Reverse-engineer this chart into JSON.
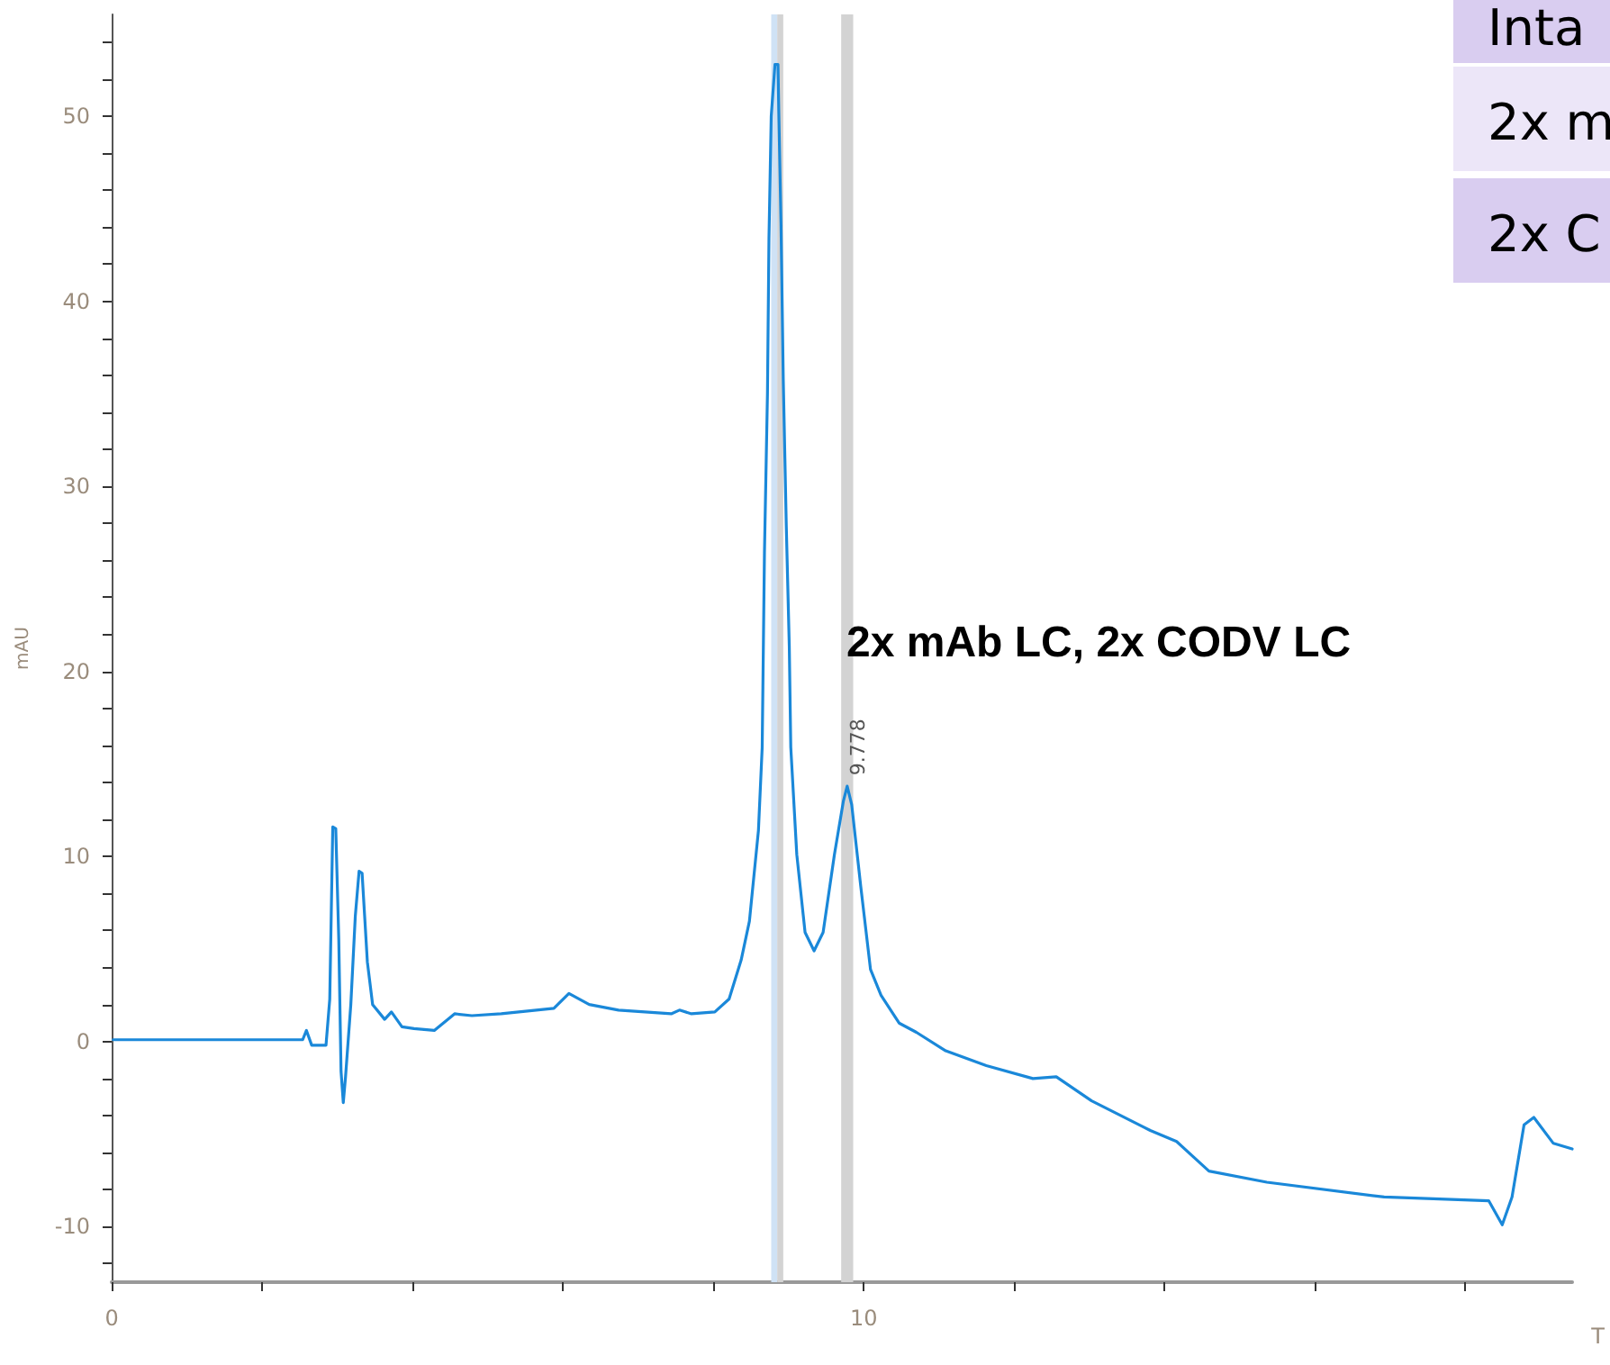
{
  "chart_data": {
    "type": "line",
    "xlabel": "T",
    "ylabel": "mAU",
    "xlim": [
      0,
      19.42
    ],
    "ylim": [
      -13,
      55.5
    ],
    "xticks": [
      0,
      {
        "value": 2,
        "label": null
      },
      {
        "value": 4,
        "label": null
      },
      {
        "value": 6,
        "label": null
      },
      {
        "value": 8,
        "label": null
      },
      10,
      {
        "value": 12,
        "label": null
      },
      {
        "value": 14,
        "label": null
      },
      {
        "value": 16,
        "label": null
      },
      {
        "value": 18,
        "label": null
      }
    ],
    "yticks": [
      {
        "value": -12,
        "label": null
      },
      -10,
      {
        "value": -8,
        "label": null
      },
      {
        "value": -6,
        "label": null
      },
      {
        "value": -4,
        "label": null
      },
      {
        "value": -2,
        "label": null
      },
      0,
      {
        "value": 2,
        "label": null
      },
      {
        "value": 4,
        "label": null
      },
      {
        "value": 6,
        "label": null
      },
      {
        "value": 8,
        "label": null
      },
      10,
      {
        "value": 12,
        "label": null
      },
      {
        "value": 14,
        "label": null
      },
      {
        "value": 16,
        "label": null
      },
      {
        "value": 18,
        "label": null
      },
      20,
      {
        "value": 22,
        "label": null
      },
      {
        "value": 24,
        "label": null
      },
      {
        "value": 26,
        "label": null
      },
      {
        "value": 28,
        "label": null
      },
      30,
      {
        "value": 32,
        "label": null
      },
      {
        "value": 34,
        "label": null
      },
      {
        "value": 36,
        "label": null
      },
      {
        "value": 38,
        "label": null
      },
      40,
      {
        "value": 42,
        "label": null
      },
      {
        "value": 44,
        "label": null
      },
      {
        "value": 46,
        "label": null
      },
      {
        "value": 48,
        "label": null
      },
      50,
      {
        "value": 52,
        "label": null
      },
      {
        "value": 54,
        "label": null
      }
    ],
    "grid": false,
    "marker": "none",
    "line_style": "solid",
    "bands": [
      {
        "axis": "x",
        "from": 8.77,
        "to": 8.85,
        "color": "#cfe2f5"
      },
      {
        "axis": "x",
        "from": 8.85,
        "to": 8.93,
        "color": "#d3d3d3"
      },
      {
        "axis": "x",
        "from": 9.7,
        "to": 9.86,
        "color": "#d3d3d3"
      }
    ],
    "series": [
      {
        "color": "#1a88d9",
        "x": [
          0.02,
          2.54,
          2.59,
          2.66,
          2.85,
          2.9,
          2.94,
          2.98,
          3.02,
          3.05,
          3.08,
          3.11,
          3.18,
          3.24,
          3.29,
          3.33,
          3.4,
          3.47,
          3.63,
          3.72,
          3.86,
          4.02,
          4.29,
          4.56,
          4.79,
          5.18,
          5.88,
          6.08,
          6.35,
          6.74,
          7.44,
          7.55,
          7.71,
          8.02,
          8.21,
          8.37,
          8.48,
          8.6,
          8.65,
          8.68,
          8.72,
          8.74,
          8.77,
          8.82,
          8.86,
          8.87,
          8.9,
          8.93,
          8.97,
          9.01,
          9.03,
          9.11,
          9.22,
          9.34,
          9.46,
          9.61,
          9.73,
          9.78,
          9.84,
          9.96,
          10.09,
          10.23,
          10.47,
          10.7,
          11.09,
          11.63,
          12.25,
          12.56,
          13.03,
          13.81,
          14.16,
          14.59,
          15.36,
          16.92,
          18.31,
          18.49,
          18.62,
          18.78,
          18.91,
          19.17,
          19.42
        ],
        "values": [
          0.1,
          0.1,
          0.6,
          -0.2,
          -0.2,
          2.3,
          11.6,
          11.5,
          5.5,
          -1.6,
          -3.3,
          -1.9,
          2.0,
          6.8,
          9.2,
          9.1,
          4.3,
          2.0,
          1.2,
          1.6,
          0.8,
          0.7,
          0.6,
          1.5,
          1.4,
          1.5,
          1.8,
          2.6,
          2.0,
          1.7,
          1.5,
          1.7,
          1.5,
          1.6,
          2.3,
          4.4,
          6.5,
          11.4,
          15.9,
          26.4,
          35,
          43.4,
          50.0,
          52.8,
          52.8,
          50.4,
          44.2,
          35.8,
          27.9,
          21.4,
          15.9,
          10.1,
          5.9,
          4.9,
          5.9,
          10.1,
          13.0,
          13.8,
          12.8,
          8.4,
          3.9,
          2.5,
          1.0,
          0.5,
          -0.5,
          -1.3,
          -2.0,
          -1.9,
          -3.2,
          -4.8,
          -5.4,
          -7.0,
          -7.6,
          -8.4,
          -8.6,
          -9.9,
          -8.4,
          -4.5,
          -4.1,
          -5.5,
          -5.8
        ]
      }
    ],
    "annotations": [
      {
        "text": "9.778",
        "x": 9.778,
        "y": 13.8
      },
      "2x mAb LC, 2x CODV LC",
      "Inta",
      "2x m",
      "2x C"
    ]
  }
}
